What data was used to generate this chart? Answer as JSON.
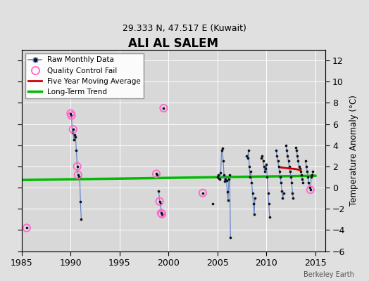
{
  "title": "ALI AL SALEM",
  "subtitle": "29.333 N, 47.517 E (Kuwait)",
  "ylabel_right": "Temperature Anomaly (°C)",
  "credit": "Berkeley Earth",
  "xlim": [
    1985,
    2016
  ],
  "ylim": [
    -6,
    13
  ],
  "yticks": [
    -6,
    -4,
    -2,
    0,
    2,
    4,
    6,
    8,
    10,
    12
  ],
  "xticks": [
    1985,
    1990,
    1995,
    2000,
    2005,
    2010,
    2015
  ],
  "bg_color": "#e0e0e0",
  "plot_bg_color": "#d8d8d8",
  "raw_line_color": "#6688cc",
  "raw_marker_color": "#111111",
  "qc_fail_color": "#ff66cc",
  "five_yr_color": "#cc0000",
  "trend_color": "#00bb00",
  "segments": [
    [
      [
        1990.0,
        7.0
      ],
      [
        1990.08,
        6.8
      ],
      [
        1990.17,
        5.2
      ],
      [
        1990.25,
        5.5
      ],
      [
        1990.33,
        4.5
      ],
      [
        1990.42,
        5.0
      ],
      [
        1990.5,
        4.8
      ],
      [
        1990.58,
        3.5
      ],
      [
        1990.67,
        2.0
      ],
      [
        1990.75,
        1.2
      ],
      [
        1990.83,
        1.0
      ],
      [
        1990.92,
        1.0
      ],
      [
        1991.0,
        -1.3
      ],
      [
        1991.08,
        -3.0
      ]
    ],
    [
      [
        1998.75,
        1.3
      ],
      [
        1998.83,
        1.2
      ]
    ],
    [
      [
        1999.0,
        -0.3
      ],
      [
        1999.08,
        -1.3
      ],
      [
        1999.17,
        -1.5
      ],
      [
        1999.25,
        -2.4
      ],
      [
        1999.33,
        -2.5
      ]
    ],
    [
      [
        2005.0,
        1.0
      ],
      [
        2005.08,
        1.2
      ],
      [
        2005.17,
        0.9
      ],
      [
        2005.25,
        0.8
      ],
      [
        2005.33,
        1.4
      ],
      [
        2005.42,
        3.5
      ],
      [
        2005.5,
        3.7
      ],
      [
        2005.58,
        2.5
      ],
      [
        2005.67,
        1.2
      ],
      [
        2005.75,
        0.6
      ],
      [
        2005.83,
        0.8
      ],
      [
        2005.92,
        0.7
      ],
      [
        2006.0,
        -0.4
      ],
      [
        2006.08,
        -1.2
      ],
      [
        2006.17,
        0.8
      ],
      [
        2006.25,
        1.2
      ],
      [
        2006.33,
        -4.7
      ]
    ],
    [
      [
        2008.0,
        3.0
      ],
      [
        2008.08,
        2.8
      ],
      [
        2008.17,
        3.5
      ],
      [
        2008.25,
        2.0
      ],
      [
        2008.33,
        1.0
      ],
      [
        2008.42,
        1.5
      ],
      [
        2008.5,
        0.5
      ],
      [
        2008.58,
        -0.5
      ],
      [
        2008.67,
        -1.5
      ],
      [
        2008.75,
        -2.5
      ],
      [
        2008.83,
        -1.0
      ]
    ],
    [
      [
        2009.5,
        2.8
      ],
      [
        2009.58,
        3.0
      ],
      [
        2009.67,
        2.5
      ],
      [
        2009.75,
        2.0
      ],
      [
        2009.83,
        1.5
      ],
      [
        2009.92,
        1.8
      ],
      [
        2010.0,
        2.2
      ],
      [
        2010.08,
        1.0
      ],
      [
        2010.17,
        -0.5
      ],
      [
        2010.25,
        -1.5
      ],
      [
        2010.33,
        -2.8
      ]
    ],
    [
      [
        2011.0,
        3.5
      ],
      [
        2011.08,
        3.0
      ],
      [
        2011.17,
        2.5
      ],
      [
        2011.25,
        2.0
      ],
      [
        2011.33,
        1.5
      ],
      [
        2011.42,
        1.0
      ],
      [
        2011.5,
        0.5
      ],
      [
        2011.58,
        -0.3
      ],
      [
        2011.67,
        -1.0
      ],
      [
        2011.75,
        -0.5
      ]
    ],
    [
      [
        2012.0,
        4.0
      ],
      [
        2012.08,
        3.5
      ],
      [
        2012.17,
        3.0
      ],
      [
        2012.25,
        2.5
      ],
      [
        2012.33,
        2.0
      ],
      [
        2012.42,
        1.5
      ],
      [
        2012.5,
        1.0
      ],
      [
        2012.58,
        0.5
      ],
      [
        2012.67,
        -0.5
      ],
      [
        2012.75,
        -1.0
      ]
    ],
    [
      [
        2013.0,
        3.8
      ],
      [
        2013.08,
        3.5
      ],
      [
        2013.17,
        3.0
      ],
      [
        2013.25,
        2.5
      ],
      [
        2013.33,
        2.0
      ],
      [
        2013.42,
        1.8
      ],
      [
        2013.5,
        1.5
      ],
      [
        2013.58,
        1.2
      ],
      [
        2013.67,
        0.8
      ],
      [
        2013.75,
        0.5
      ]
    ],
    [
      [
        2014.0,
        2.5
      ],
      [
        2014.08,
        2.0
      ],
      [
        2014.17,
        1.5
      ],
      [
        2014.25,
        1.0
      ],
      [
        2014.33,
        0.5
      ],
      [
        2014.42,
        0.0
      ],
      [
        2014.5,
        -0.2
      ],
      [
        2014.58,
        1.0
      ],
      [
        2014.67,
        1.2
      ],
      [
        2014.75,
        1.5
      ]
    ]
  ],
  "isolated_points": [
    [
      1985.5,
      -3.8
    ],
    [
      1999.5,
      7.5
    ],
    [
      2003.5,
      -0.5
    ],
    [
      2004.5,
      -1.5
    ]
  ],
  "qc_fail_points": [
    [
      1985.5,
      -3.8
    ],
    [
      1990.0,
      7.0
    ],
    [
      1990.08,
      6.8
    ],
    [
      1990.25,
      5.5
    ],
    [
      1990.67,
      2.0
    ],
    [
      1990.75,
      1.2
    ],
    [
      1999.5,
      7.5
    ],
    [
      1998.75,
      1.3
    ],
    [
      1999.08,
      -1.3
    ],
    [
      1999.25,
      -2.4
    ],
    [
      1999.33,
      -2.5
    ],
    [
      2003.5,
      -0.5
    ],
    [
      2014.5,
      -0.2
    ]
  ],
  "five_yr_avg": [
    [
      2011.5,
      1.9
    ],
    [
      2012.0,
      1.85
    ],
    [
      2012.5,
      1.8
    ],
    [
      2013.0,
      1.75
    ],
    [
      2013.5,
      1.65
    ]
  ],
  "trend_line": [
    [
      1985,
      0.72
    ],
    [
      2015,
      1.12
    ]
  ]
}
